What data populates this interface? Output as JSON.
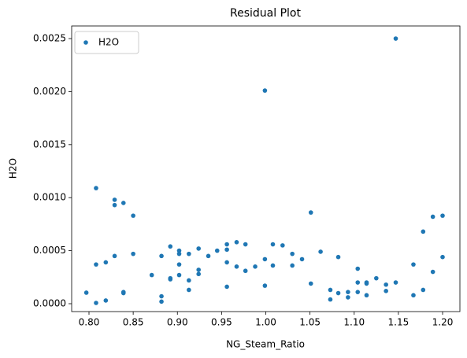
{
  "chart_data": {
    "type": "scatter",
    "title": "Residual Plot",
    "x_label": "NG_Steam_Ratio",
    "y_label": "H2O",
    "x": [
      0.797,
      0.808,
      0.808,
      0.808,
      0.819,
      0.819,
      0.829,
      0.829,
      0.829,
      0.839,
      0.839,
      0.839,
      0.85,
      0.85,
      0.871,
      0.882,
      0.882,
      0.882,
      0.892,
      0.892,
      0.892,
      0.902,
      0.902,
      0.902,
      0.902,
      0.913,
      0.913,
      0.913,
      0.924,
      0.924,
      0.924,
      0.935,
      0.945,
      0.956,
      0.956,
      0.956,
      0.956,
      0.967,
      0.967,
      0.977,
      0.977,
      0.988,
      0.999,
      0.999,
      0.999,
      1.008,
      1.008,
      1.019,
      1.03,
      1.03,
      1.041,
      1.051,
      1.051,
      1.062,
      1.073,
      1.073,
      1.082,
      1.082,
      1.093,
      1.093,
      1.104,
      1.104,
      1.104,
      1.114,
      1.114,
      1.114,
      1.125,
      1.136,
      1.136,
      1.147,
      1.147,
      1.167,
      1.167,
      1.178,
      1.178,
      1.189,
      1.189,
      1.2,
      1.2
    ],
    "series": [
      {
        "name": "H2O",
        "color": "#1f77b4",
        "values": [
          0.000104,
          7.4e-06,
          0.00109,
          0.00037,
          3e-05,
          0.00039,
          0.00098,
          0.00093,
          0.00045,
          0.00095,
          0.00011,
          0.0001,
          0.00083,
          0.00047,
          0.00027,
          0.00045,
          7e-05,
          2e-05,
          0.00054,
          0.00024,
          0.00023,
          0.0005,
          0.00047,
          0.00037,
          0.00027,
          0.00047,
          0.00022,
          0.00013,
          0.00052,
          0.00032,
          0.00028,
          0.00045,
          0.0005,
          0.00056,
          0.00051,
          0.00039,
          0.00016,
          0.00058,
          0.00035,
          0.00056,
          0.00031,
          0.00035,
          0.00201,
          0.00042,
          0.00017,
          0.00056,
          0.00036,
          0.00055,
          0.00047,
          0.00036,
          0.00042,
          0.00086,
          0.00019,
          0.00049,
          0.00013,
          4e-05,
          0.00044,
          0.0001,
          0.00011,
          6e-05,
          0.00033,
          0.0002,
          0.00011,
          0.0002,
          0.00019,
          8e-05,
          0.00024,
          0.00018,
          0.00012,
          0.0025,
          0.0002,
          0.00037,
          8e-05,
          0.00068,
          0.00013,
          0.00082,
          0.0003,
          0.00083,
          0.00044
        ]
      }
    ],
    "xlim": [
      0.7804,
      1.2196
    ],
    "ylim": [
      -7.42e-05,
      0.002619
    ],
    "xticks": [
      {
        "value": 0.8,
        "label": "0.80"
      },
      0.85,
      {
        "value": 0.9,
        "label": "0.90"
      },
      0.95,
      {
        "value": 1.0,
        "label": "1.00"
      },
      1.05,
      {
        "value": 1.1,
        "label": "1.10"
      },
      1.15,
      {
        "value": 1.2,
        "label": "1.20"
      }
    ],
    "yticks": [
      {
        "value": 0,
        "label": "0.0000"
      },
      {
        "value": 0.0005,
        "label": "0.0005"
      },
      {
        "value": 0.001,
        "label": "0.0010"
      },
      {
        "value": 0.0015,
        "label": "0.0015"
      },
      {
        "value": 0.002,
        "label": "0.0020"
      },
      {
        "value": 0.0025,
        "label": "0.0025"
      }
    ],
    "legend": "upper left",
    "grid": false
  }
}
